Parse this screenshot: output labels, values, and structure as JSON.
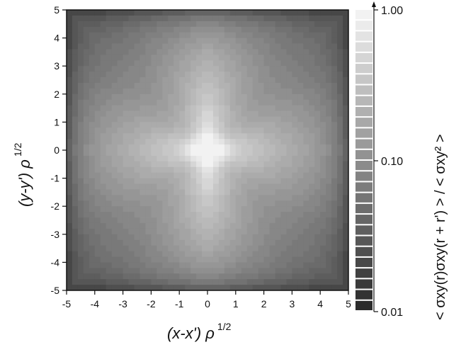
{
  "chart_data": {
    "type": "heatmap",
    "title": "",
    "x_axis": {
      "label_main": "(x-x') ρ",
      "label_exponent": "1/2",
      "range": [
        -5,
        5
      ],
      "ticks": [
        -5,
        -4,
        -3,
        -2,
        -1,
        0,
        1,
        2,
        3,
        4,
        5
      ]
    },
    "y_axis": {
      "label_main": "(y-y') ρ",
      "label_exponent": "1/2",
      "range": [
        -5,
        5
      ],
      "ticks": [
        5,
        4,
        3,
        2,
        1,
        0,
        -1,
        -2,
        -3,
        -4,
        -5
      ]
    },
    "colorbar": {
      "scale": "log",
      "range": [
        0.01,
        1.0
      ],
      "tick_labels": [
        "1.00",
        "0.10",
        "0.01"
      ],
      "tick_values": [
        1.0,
        0.1,
        0.01
      ],
      "levels": 28,
      "label": "< σxy(r)σxy(r + r') > / < σxy² >",
      "color_low": "#2b2b2b",
      "color_high": "#f2f2f2"
    },
    "description_values": {
      "center_value": 1.0,
      "corner_value": 0.01,
      "pattern": "four-lobed quadrupolar correlation with cross along axes"
    }
  }
}
